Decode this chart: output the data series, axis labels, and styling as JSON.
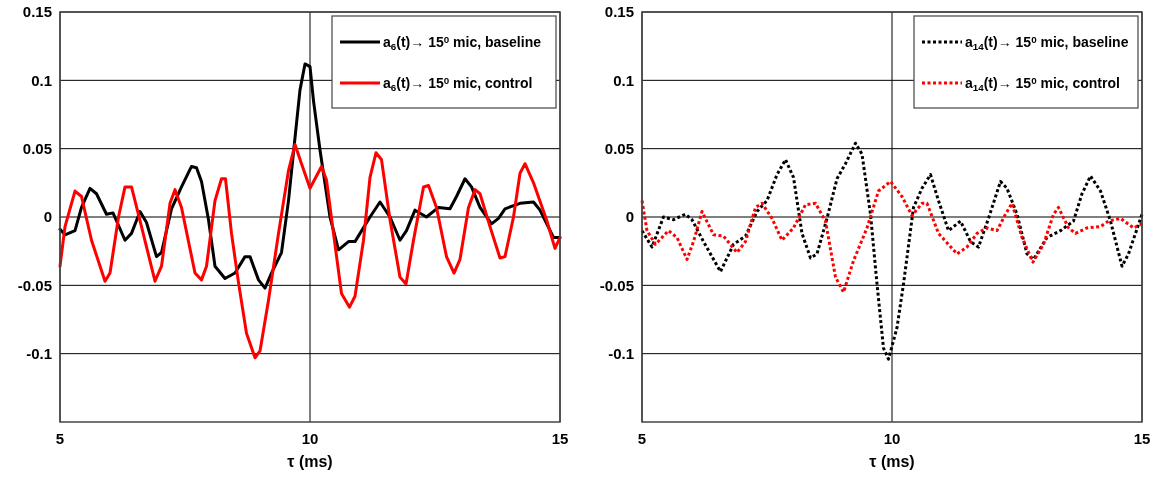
{
  "chart_data": [
    {
      "type": "line",
      "xlabel": "τ (ms)",
      "xlim": [
        5,
        15
      ],
      "xticks": [
        5,
        10,
        15
      ],
      "ylim": [
        -0.15,
        0.15
      ],
      "yticks": [
        -0.1,
        -0.05,
        0,
        0.05,
        0.1,
        0.15
      ],
      "grid": true,
      "legend": "top right",
      "line_style": "solid",
      "series": [
        {
          "name": "a$_{6}$(t)→ 15$^{0}$ mic, baseline",
          "color": "#000000",
          "x": [
            5.0,
            5.1,
            5.3,
            5.43,
            5.6,
            5.73,
            5.93,
            6.06,
            6.3,
            6.43,
            6.6,
            6.73,
            6.93,
            7.03,
            7.23,
            7.43,
            7.63,
            7.73,
            7.83,
            7.97,
            8.1,
            8.3,
            8.5,
            8.7,
            8.8,
            8.97,
            9.1,
            9.23,
            9.43,
            9.57,
            9.7,
            9.8,
            9.9,
            10.0,
            10.07,
            10.2,
            10.4,
            10.57,
            10.77,
            10.9,
            11.2,
            11.4,
            11.6,
            11.8,
            11.93,
            12.1,
            12.33,
            12.57,
            12.8,
            12.93,
            13.1,
            13.23,
            13.4,
            13.63,
            13.77,
            13.9,
            14.2,
            14.47,
            14.6,
            14.87,
            15.0
          ],
          "values": [
            -0.009,
            -0.013,
            -0.01,
            0.007,
            0.021,
            0.017,
            0.002,
            0.003,
            -0.017,
            -0.012,
            0.004,
            -0.004,
            -0.029,
            -0.026,
            0.006,
            0.022,
            0.037,
            0.036,
            0.026,
            -0.002,
            -0.036,
            -0.045,
            -0.041,
            -0.029,
            -0.029,
            -0.046,
            -0.052,
            -0.041,
            -0.026,
            0.012,
            0.058,
            0.093,
            0.112,
            0.11,
            0.085,
            0.049,
            0,
            -0.024,
            -0.018,
            -0.018,
            0,
            0.011,
            0,
            -0.017,
            -0.01,
            0.005,
            0,
            0.007,
            0.006,
            0.015,
            0.028,
            0.022,
            0.007,
            -0.005,
            -0.001,
            0.006,
            0.01,
            0.011,
            0.005,
            -0.015,
            -0.015
          ]
        },
        {
          "name": "a$_{6}$(t)→ 15$^{0}$ mic, control",
          "color": "#ff0000",
          "x": [
            5.0,
            5.1,
            5.3,
            5.43,
            5.63,
            5.9,
            6.0,
            6.17,
            6.3,
            6.43,
            6.63,
            6.9,
            7.03,
            7.2,
            7.3,
            7.43,
            7.7,
            7.83,
            7.93,
            8.1,
            8.23,
            8.31,
            8.43,
            8.57,
            8.73,
            8.9,
            9.0,
            9.17,
            9.37,
            9.57,
            9.7,
            9.83,
            10.0,
            10.23,
            10.33,
            10.47,
            10.63,
            10.79,
            10.9,
            11.07,
            11.2,
            11.32,
            11.43,
            11.6,
            11.8,
            11.92,
            12.07,
            12.27,
            12.37,
            12.53,
            12.73,
            12.88,
            13.0,
            13.17,
            13.3,
            13.4,
            13.6,
            13.8,
            13.9,
            14.07,
            14.2,
            14.3,
            14.47,
            14.73,
            14.9,
            15.0
          ],
          "values": [
            -0.036,
            -0.007,
            0.019,
            0.015,
            -0.017,
            -0.047,
            -0.041,
            0,
            0.022,
            0.022,
            -0.007,
            -0.047,
            -0.036,
            0.01,
            0.02,
            0.007,
            -0.041,
            -0.046,
            -0.036,
            0.012,
            0.028,
            0.028,
            -0.012,
            -0.048,
            -0.085,
            -0.103,
            -0.098,
            -0.061,
            -0.012,
            0.034,
            0.053,
            0.039,
            0.021,
            0.037,
            0.027,
            -0.012,
            -0.056,
            -0.066,
            -0.058,
            -0.017,
            0.029,
            0.047,
            0.042,
            -0.002,
            -0.044,
            -0.049,
            -0.017,
            0.022,
            0.023,
            0.007,
            -0.029,
            -0.041,
            -0.031,
            0.007,
            0.02,
            0.017,
            -0.007,
            -0.03,
            -0.029,
            0,
            0.032,
            0.039,
            0.025,
            -0.002,
            -0.023,
            -0.015
          ]
        }
      ]
    },
    {
      "type": "line",
      "xlabel": "τ (ms)",
      "xlim": [
        5,
        15
      ],
      "xticks": [
        5,
        10,
        15
      ],
      "ylim": [
        -0.15,
        0.15
      ],
      "yticks": [
        -0.1,
        -0.05,
        0,
        0.05,
        0.1,
        0.15
      ],
      "grid": true,
      "legend": "top right",
      "line_style": "dotted",
      "series": [
        {
          "name": "a$_{14}$(t)→ 15$^{0}$ mic, baseline",
          "color": "#000000",
          "x": [
            5.0,
            5.2,
            5.43,
            5.63,
            5.87,
            6.0,
            6.23,
            6.57,
            6.83,
            7.07,
            7.3,
            7.5,
            7.7,
            7.87,
            8.03,
            8.2,
            8.37,
            8.5,
            8.7,
            8.9,
            9.07,
            9.27,
            9.4,
            9.57,
            9.7,
            9.83,
            9.93,
            10.1,
            10.23,
            10.43,
            10.6,
            10.77,
            10.93,
            11.13,
            11.37,
            11.57,
            11.73,
            11.93,
            12.17,
            12.3,
            12.5,
            12.7,
            12.83,
            13.1,
            13.37,
            13.63,
            13.8,
            13.97,
            14.17,
            14.37,
            14.6,
            14.73,
            15.0
          ],
          "values": [
            -0.01,
            -0.022,
            0,
            -0.002,
            0.002,
            -0.002,
            -0.018,
            -0.04,
            -0.02,
            -0.014,
            0.004,
            0.012,
            0.031,
            0.042,
            0.029,
            -0.012,
            -0.03,
            -0.027,
            -0.001,
            0.028,
            0.039,
            0.054,
            0.046,
            0.002,
            -0.049,
            -0.096,
            -0.104,
            -0.081,
            -0.049,
            0.007,
            0.021,
            0.031,
            0.012,
            -0.01,
            -0.003,
            -0.018,
            -0.022,
            -0.001,
            0.026,
            0.021,
            0.002,
            -0.027,
            -0.031,
            -0.015,
            -0.01,
            -0.003,
            0.017,
            0.03,
            0.019,
            -0.003,
            -0.036,
            -0.027,
            0.002
          ]
        },
        {
          "name": "a$_{14}$(t)→ 15$^{0}$ mic, control",
          "color": "#ff0000",
          "x": [
            5.0,
            5.1,
            5.27,
            5.53,
            5.7,
            5.9,
            6.03,
            6.2,
            6.43,
            6.63,
            6.9,
            7.07,
            7.27,
            7.4,
            7.6,
            7.8,
            8.03,
            8.27,
            8.47,
            8.67,
            8.87,
            9.03,
            9.23,
            9.5,
            9.73,
            9.97,
            10.2,
            10.4,
            10.6,
            10.7,
            10.93,
            11.3,
            11.5,
            11.7,
            11.9,
            12.1,
            12.27,
            12.4,
            12.6,
            12.82,
            13.03,
            13.23,
            13.33,
            13.53,
            13.67,
            13.9,
            14.17,
            14.33,
            14.57,
            14.83,
            15.0
          ],
          "values": [
            0.012,
            -0.01,
            -0.02,
            -0.01,
            -0.015,
            -0.031,
            -0.018,
            0.004,
            -0.013,
            -0.014,
            -0.026,
            -0.018,
            0.007,
            0.01,
            -0.001,
            -0.017,
            -0.008,
            0.009,
            0.01,
            -0.003,
            -0.044,
            -0.055,
            -0.032,
            -0.008,
            0.019,
            0.026,
            0.015,
            0.001,
            0.01,
            0.01,
            -0.012,
            -0.027,
            -0.022,
            -0.012,
            -0.008,
            -0.01,
            0.002,
            0.01,
            -0.015,
            -0.033,
            -0.02,
            0.002,
            0.007,
            -0.008,
            -0.012,
            -0.008,
            -0.007,
            -0.003,
            -0.001,
            -0.008,
            -0.005
          ]
        }
      ]
    }
  ]
}
